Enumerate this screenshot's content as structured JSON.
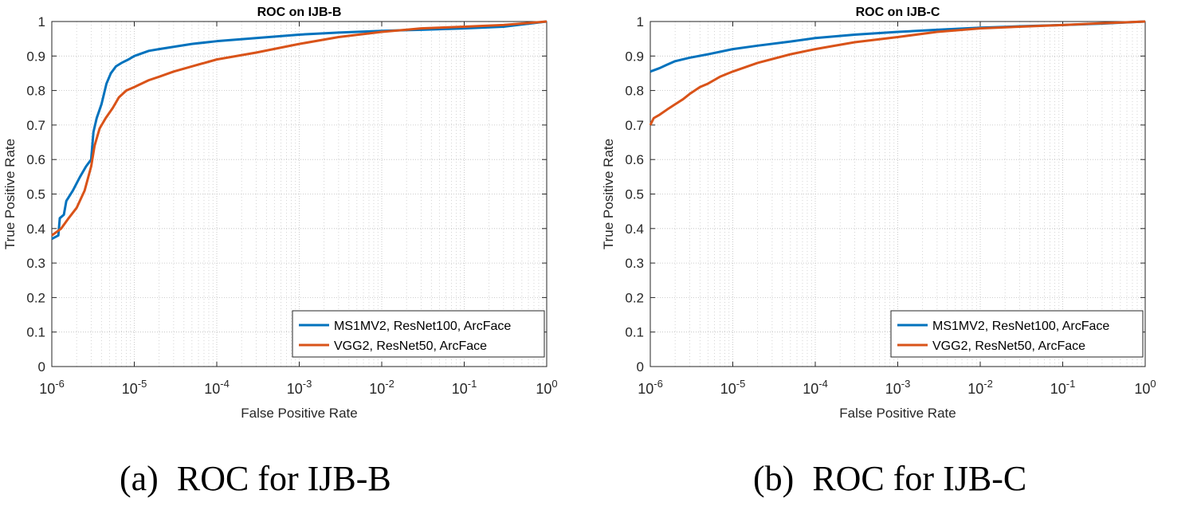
{
  "chart_data": [
    {
      "type": "line",
      "title": "ROC on IJB-B",
      "xlabel": "False Positive Rate",
      "ylabel": "True Positive Rate",
      "xscale": "log",
      "xlim": [
        1e-06,
        1
      ],
      "ylim": [
        0,
        1
      ],
      "grid": true,
      "legend_position": "bottom-right",
      "x_ticks": [
        {
          "base": "10",
          "exp": "-6"
        },
        {
          "base": "10",
          "exp": "-5"
        },
        {
          "base": "10",
          "exp": "-4"
        },
        {
          "base": "10",
          "exp": "-3"
        },
        {
          "base": "10",
          "exp": "-2"
        },
        {
          "base": "10",
          "exp": "-1"
        },
        {
          "base": "10",
          "exp": "0"
        }
      ],
      "y_ticks": [
        "0",
        "0.1",
        "0.2",
        "0.3",
        "0.4",
        "0.5",
        "0.6",
        "0.7",
        "0.8",
        "0.9",
        "1"
      ],
      "series": [
        {
          "name": "MS1MV2, ResNet100, ArcFace",
          "color": "#0072BD",
          "points": [
            [
              1e-06,
              0.37
            ],
            [
              1.2e-06,
              0.38
            ],
            [
              1.25e-06,
              0.43
            ],
            [
              1.4e-06,
              0.44
            ],
            [
              1.5e-06,
              0.48
            ],
            [
              1.8e-06,
              0.51
            ],
            [
              2.2e-06,
              0.55
            ],
            [
              2.6e-06,
              0.58
            ],
            [
              3e-06,
              0.6
            ],
            [
              3.2e-06,
              0.68
            ],
            [
              3.5e-06,
              0.72
            ],
            [
              4e-06,
              0.76
            ],
            [
              4.6e-06,
              0.82
            ],
            [
              5.2e-06,
              0.85
            ],
            [
              6e-06,
              0.87
            ],
            [
              7e-06,
              0.88
            ],
            [
              8.5e-06,
              0.89
            ],
            [
              1e-05,
              0.9
            ],
            [
              1.5e-05,
              0.915
            ],
            [
              2e-05,
              0.92
            ],
            [
              5e-05,
              0.935
            ],
            [
              0.0001,
              0.943
            ],
            [
              0.0003,
              0.952
            ],
            [
              0.001,
              0.962
            ],
            [
              0.003,
              0.968
            ],
            [
              0.01,
              0.973
            ],
            [
              0.03,
              0.976
            ],
            [
              0.1,
              0.98
            ],
            [
              0.3,
              0.985
            ],
            [
              1,
              1.0
            ]
          ]
        },
        {
          "name": "VGG2, ResNet50, ArcFace",
          "color": "#D95319",
          "points": [
            [
              1e-06,
              0.38
            ],
            [
              1.3e-06,
              0.4
            ],
            [
              1.6e-06,
              0.43
            ],
            [
              2e-06,
              0.46
            ],
            [
              2.5e-06,
              0.51
            ],
            [
              3e-06,
              0.58
            ],
            [
              3.3e-06,
              0.64
            ],
            [
              3.8e-06,
              0.69
            ],
            [
              4.5e-06,
              0.72
            ],
            [
              5.5e-06,
              0.75
            ],
            [
              6.5e-06,
              0.78
            ],
            [
              8e-06,
              0.8
            ],
            [
              1e-05,
              0.81
            ],
            [
              1.5e-05,
              0.83
            ],
            [
              2e-05,
              0.84
            ],
            [
              3e-05,
              0.855
            ],
            [
              5e-05,
              0.87
            ],
            [
              0.0001,
              0.89
            ],
            [
              0.0003,
              0.91
            ],
            [
              0.001,
              0.935
            ],
            [
              0.003,
              0.955
            ],
            [
              0.01,
              0.97
            ],
            [
              0.03,
              0.98
            ],
            [
              0.1,
              0.985
            ],
            [
              0.3,
              0.99
            ],
            [
              1,
              1.0
            ]
          ]
        }
      ]
    },
    {
      "type": "line",
      "title": "ROC on IJB-C",
      "xlabel": "False Positive Rate",
      "ylabel": "True Positive Rate",
      "xscale": "log",
      "xlim": [
        1e-06,
        1
      ],
      "ylim": [
        0,
        1
      ],
      "grid": true,
      "legend_position": "bottom-right",
      "x_ticks": [
        {
          "base": "10",
          "exp": "-6"
        },
        {
          "base": "10",
          "exp": "-5"
        },
        {
          "base": "10",
          "exp": "-4"
        },
        {
          "base": "10",
          "exp": "-3"
        },
        {
          "base": "10",
          "exp": "-2"
        },
        {
          "base": "10",
          "exp": "-1"
        },
        {
          "base": "10",
          "exp": "0"
        }
      ],
      "y_ticks": [
        "0",
        "0.1",
        "0.2",
        "0.3",
        "0.4",
        "0.5",
        "0.6",
        "0.7",
        "0.8",
        "0.9",
        "1"
      ],
      "series": [
        {
          "name": "MS1MV2, ResNet100, ArcFace",
          "color": "#0072BD",
          "points": [
            [
              1e-06,
              0.855
            ],
            [
              1.3e-06,
              0.865
            ],
            [
              1.6e-06,
              0.875
            ],
            [
              2e-06,
              0.885
            ],
            [
              3e-06,
              0.895
            ],
            [
              5e-06,
              0.905
            ],
            [
              1e-05,
              0.92
            ],
            [
              2e-05,
              0.93
            ],
            [
              5e-05,
              0.942
            ],
            [
              0.0001,
              0.952
            ],
            [
              0.0003,
              0.962
            ],
            [
              0.001,
              0.97
            ],
            [
              0.003,
              0.976
            ],
            [
              0.01,
              0.982
            ],
            [
              0.03,
              0.986
            ],
            [
              0.1,
              0.99
            ],
            [
              0.3,
              0.994
            ],
            [
              1,
              1.0
            ]
          ]
        },
        {
          "name": "VGG2, ResNet50, ArcFace",
          "color": "#D95319",
          "points": [
            [
              1e-06,
              0.7
            ],
            [
              1.1e-06,
              0.72
            ],
            [
              1.3e-06,
              0.73
            ],
            [
              1.6e-06,
              0.745
            ],
            [
              2e-06,
              0.76
            ],
            [
              2.5e-06,
              0.775
            ],
            [
              3e-06,
              0.79
            ],
            [
              4e-06,
              0.81
            ],
            [
              5e-06,
              0.82
            ],
            [
              7e-06,
              0.84
            ],
            [
              1e-05,
              0.855
            ],
            [
              2e-05,
              0.88
            ],
            [
              5e-05,
              0.905
            ],
            [
              0.0001,
              0.92
            ],
            [
              0.0003,
              0.94
            ],
            [
              0.001,
              0.955
            ],
            [
              0.003,
              0.97
            ],
            [
              0.01,
              0.98
            ],
            [
              0.03,
              0.985
            ],
            [
              0.1,
              0.99
            ],
            [
              0.3,
              0.995
            ],
            [
              1,
              1.0
            ]
          ]
        }
      ]
    }
  ],
  "captions": [
    {
      "label": "(a)",
      "text": "ROC for IJB-B"
    },
    {
      "label": "(b)",
      "text": "ROC for IJB-C"
    }
  ]
}
